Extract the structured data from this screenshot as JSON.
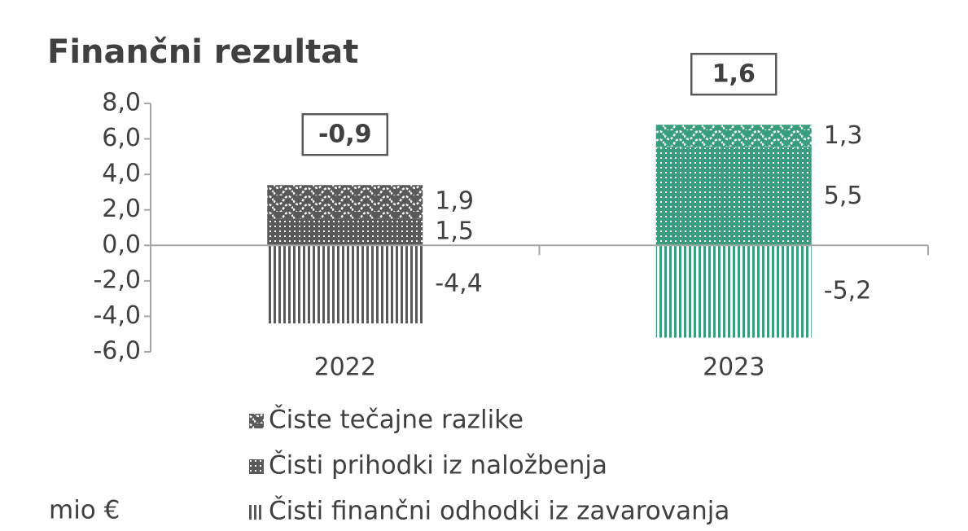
{
  "chart_data": {
    "type": "stacked_bar",
    "title": "Finančni rezultat",
    "unit_label": "mio €",
    "categories": [
      "2022",
      "2023"
    ],
    "colors": [
      "#595959",
      "#3a9e7e"
    ],
    "series": [
      {
        "name": "Čisti finančni odhodki iz zavarovanja",
        "pattern": "vlines",
        "values": [
          -4.4,
          -5.2
        ],
        "value_labels": [
          "-4,4",
          "-5,2"
        ]
      },
      {
        "name": "Čisti prihodki iz naložbenja",
        "pattern": "dots",
        "values": [
          1.5,
          5.5
        ],
        "value_labels": [
          "1,5",
          "5,5"
        ]
      },
      {
        "name": "Čiste tečajne razlike",
        "pattern": "wave",
        "values": [
          1.9,
          1.3
        ],
        "value_labels": [
          "1,9",
          "1,3"
        ]
      }
    ],
    "totals": [
      -0.9,
      1.6
    ],
    "total_labels": [
      "-0,9",
      "1,6"
    ],
    "ylim": [
      -6,
      8
    ],
    "yticks": [
      {
        "value": -6,
        "label": "-6,0"
      },
      {
        "value": -4,
        "label": "-4,0"
      },
      {
        "value": -2,
        "label": "-2,0"
      },
      {
        "value": 0,
        "label": "0,0"
      },
      {
        "value": 2,
        "label": "2,0"
      },
      {
        "value": 4,
        "label": "4,0"
      },
      {
        "value": 6,
        "label": "6,0"
      },
      {
        "value": 8,
        "label": "8,0"
      }
    ]
  }
}
